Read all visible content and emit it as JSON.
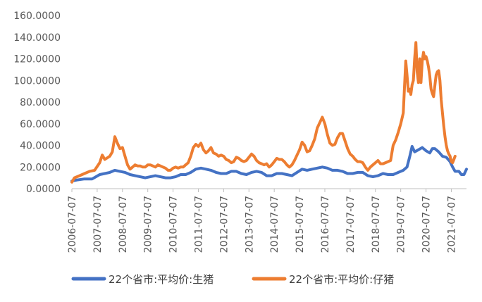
{
  "chart_data": {
    "type": "line",
    "title": "",
    "xlabel": "",
    "ylabel": "",
    "ylim": [
      0,
      160
    ],
    "y_ticks": [
      "0.0000",
      "20.0000",
      "40.0000",
      "60.0000",
      "80.0000",
      "100.0000",
      "120.0000",
      "140.0000",
      "160.0000"
    ],
    "x_ticks": [
      "2006-07-07",
      "2007-07-07",
      "2008-07-07",
      "2009-07-07",
      "2010-07-07",
      "2011-07-07",
      "2012-07-07",
      "2013-07-07",
      "2014-07-07",
      "2015-07-07",
      "2016-07-07",
      "2017-07-07",
      "2018-07-07",
      "2019-07-07",
      "2020-07-07",
      "2021-07-07"
    ],
    "x_tick_years": [
      2006.5,
      2007.5,
      2008.5,
      2009.5,
      2010.5,
      2011.5,
      2012.5,
      2013.5,
      2014.5,
      2015.5,
      2016.5,
      2017.5,
      2018.5,
      2019.5,
      2020.5,
      2021.5
    ],
    "grid": false,
    "legend_position": "bottom",
    "series": [
      {
        "name": "22个省市:平均价:生猪",
        "color": "#4472C4",
        "points": [
          [
            2006.5,
            7
          ],
          [
            2006.7,
            8
          ],
          [
            2007.0,
            9
          ],
          [
            2007.3,
            9
          ],
          [
            2007.6,
            13
          ],
          [
            2007.8,
            14
          ],
          [
            2008.0,
            15
          ],
          [
            2008.2,
            17
          ],
          [
            2008.4,
            16
          ],
          [
            2008.6,
            15
          ],
          [
            2008.8,
            13
          ],
          [
            2009.0,
            12
          ],
          [
            2009.2,
            11
          ],
          [
            2009.4,
            10
          ],
          [
            2009.6,
            11
          ],
          [
            2009.8,
            12
          ],
          [
            2010.0,
            11
          ],
          [
            2010.2,
            10
          ],
          [
            2010.4,
            10
          ],
          [
            2010.6,
            11
          ],
          [
            2010.8,
            13
          ],
          [
            2011.0,
            13
          ],
          [
            2011.2,
            15
          ],
          [
            2011.4,
            18
          ],
          [
            2011.6,
            19
          ],
          [
            2011.8,
            18
          ],
          [
            2012.0,
            17
          ],
          [
            2012.2,
            15
          ],
          [
            2012.4,
            14
          ],
          [
            2012.6,
            14
          ],
          [
            2012.8,
            16
          ],
          [
            2013.0,
            16
          ],
          [
            2013.2,
            14
          ],
          [
            2013.4,
            13
          ],
          [
            2013.6,
            15
          ],
          [
            2013.8,
            16
          ],
          [
            2014.0,
            15
          ],
          [
            2014.2,
            12
          ],
          [
            2014.4,
            12
          ],
          [
            2014.6,
            14
          ],
          [
            2014.8,
            14
          ],
          [
            2015.0,
            13
          ],
          [
            2015.2,
            12
          ],
          [
            2015.4,
            15
          ],
          [
            2015.6,
            18
          ],
          [
            2015.8,
            17
          ],
          [
            2016.0,
            18
          ],
          [
            2016.2,
            19
          ],
          [
            2016.4,
            20
          ],
          [
            2016.6,
            19
          ],
          [
            2016.8,
            17
          ],
          [
            2017.0,
            17
          ],
          [
            2017.2,
            16
          ],
          [
            2017.4,
            14
          ],
          [
            2017.6,
            14
          ],
          [
            2017.8,
            15
          ],
          [
            2018.0,
            15
          ],
          [
            2018.2,
            12
          ],
          [
            2018.4,
            11
          ],
          [
            2018.6,
            12
          ],
          [
            2018.8,
            14
          ],
          [
            2019.0,
            13
          ],
          [
            2019.2,
            13
          ],
          [
            2019.4,
            15
          ],
          [
            2019.6,
            17
          ],
          [
            2019.75,
            20
          ],
          [
            2019.85,
            29
          ],
          [
            2019.95,
            39
          ],
          [
            2020.05,
            34
          ],
          [
            2020.2,
            36
          ],
          [
            2020.35,
            38
          ],
          [
            2020.5,
            35
          ],
          [
            2020.65,
            33
          ],
          [
            2020.75,
            37
          ],
          [
            2020.85,
            37
          ],
          [
            2021.0,
            34
          ],
          [
            2021.15,
            30
          ],
          [
            2021.3,
            29
          ],
          [
            2021.45,
            25
          ],
          [
            2021.55,
            20
          ],
          [
            2021.65,
            16
          ],
          [
            2021.8,
            16
          ],
          [
            2021.9,
            13
          ],
          [
            2022.0,
            13
          ],
          [
            2022.1,
            18
          ]
        ]
      },
      {
        "name": "22个省市:平均价:仔猪",
        "color": "#ED7D31",
        "points": [
          [
            2006.5,
            6
          ],
          [
            2006.6,
            10
          ],
          [
            2006.8,
            12
          ],
          [
            2007.0,
            14
          ],
          [
            2007.2,
            16
          ],
          [
            2007.4,
            17
          ],
          [
            2007.6,
            24
          ],
          [
            2007.7,
            31
          ],
          [
            2007.8,
            27
          ],
          [
            2008.0,
            30
          ],
          [
            2008.1,
            34
          ],
          [
            2008.2,
            48
          ],
          [
            2008.3,
            42
          ],
          [
            2008.4,
            37
          ],
          [
            2008.5,
            38
          ],
          [
            2008.6,
            30
          ],
          [
            2008.7,
            22
          ],
          [
            2008.8,
            18
          ],
          [
            2008.9,
            20
          ],
          [
            2009.0,
            22
          ],
          [
            2009.1,
            21
          ],
          [
            2009.2,
            21
          ],
          [
            2009.3,
            20
          ],
          [
            2009.4,
            20
          ],
          [
            2009.5,
            22
          ],
          [
            2009.6,
            22
          ],
          [
            2009.7,
            21
          ],
          [
            2009.8,
            20
          ],
          [
            2009.9,
            22
          ],
          [
            2010.0,
            21
          ],
          [
            2010.1,
            20
          ],
          [
            2010.2,
            19
          ],
          [
            2010.3,
            17
          ],
          [
            2010.4,
            17
          ],
          [
            2010.5,
            19
          ],
          [
            2010.6,
            20
          ],
          [
            2010.7,
            19
          ],
          [
            2010.8,
            20
          ],
          [
            2010.9,
            20
          ],
          [
            2011.0,
            22
          ],
          [
            2011.1,
            24
          ],
          [
            2011.2,
            30
          ],
          [
            2011.3,
            38
          ],
          [
            2011.4,
            41
          ],
          [
            2011.5,
            39
          ],
          [
            2011.6,
            42
          ],
          [
            2011.7,
            36
          ],
          [
            2011.8,
            33
          ],
          [
            2011.9,
            35
          ],
          [
            2012.0,
            38
          ],
          [
            2012.1,
            33
          ],
          [
            2012.2,
            32
          ],
          [
            2012.3,
            30
          ],
          [
            2012.4,
            31
          ],
          [
            2012.5,
            30
          ],
          [
            2012.6,
            27
          ],
          [
            2012.7,
            26
          ],
          [
            2012.8,
            24
          ],
          [
            2012.9,
            25
          ],
          [
            2013.0,
            29
          ],
          [
            2013.1,
            28
          ],
          [
            2013.2,
            26
          ],
          [
            2013.3,
            25
          ],
          [
            2013.4,
            26
          ],
          [
            2013.5,
            29
          ],
          [
            2013.6,
            32
          ],
          [
            2013.7,
            30
          ],
          [
            2013.8,
            26
          ],
          [
            2013.9,
            24
          ],
          [
            2014.0,
            23
          ],
          [
            2014.1,
            22
          ],
          [
            2014.2,
            23
          ],
          [
            2014.3,
            20
          ],
          [
            2014.4,
            22
          ],
          [
            2014.5,
            25
          ],
          [
            2014.6,
            28
          ],
          [
            2014.7,
            27
          ],
          [
            2014.8,
            27
          ],
          [
            2014.9,
            25
          ],
          [
            2015.0,
            22
          ],
          [
            2015.1,
            20
          ],
          [
            2015.2,
            22
          ],
          [
            2015.3,
            26
          ],
          [
            2015.4,
            31
          ],
          [
            2015.5,
            36
          ],
          [
            2015.6,
            43
          ],
          [
            2015.7,
            40
          ],
          [
            2015.8,
            34
          ],
          [
            2015.9,
            35
          ],
          [
            2016.0,
            40
          ],
          [
            2016.1,
            46
          ],
          [
            2016.2,
            56
          ],
          [
            2016.3,
            61
          ],
          [
            2016.4,
            66
          ],
          [
            2016.5,
            60
          ],
          [
            2016.6,
            50
          ],
          [
            2016.7,
            42
          ],
          [
            2016.8,
            40
          ],
          [
            2016.9,
            41
          ],
          [
            2017.0,
            47
          ],
          [
            2017.1,
            51
          ],
          [
            2017.2,
            51
          ],
          [
            2017.3,
            44
          ],
          [
            2017.4,
            37
          ],
          [
            2017.5,
            32
          ],
          [
            2017.6,
            30
          ],
          [
            2017.7,
            27
          ],
          [
            2017.8,
            25
          ],
          [
            2017.9,
            25
          ],
          [
            2018.0,
            24
          ],
          [
            2018.1,
            20
          ],
          [
            2018.2,
            17
          ],
          [
            2018.3,
            20
          ],
          [
            2018.4,
            22
          ],
          [
            2018.5,
            24
          ],
          [
            2018.6,
            26
          ],
          [
            2018.7,
            23
          ],
          [
            2018.8,
            23
          ],
          [
            2018.9,
            24
          ],
          [
            2019.0,
            25
          ],
          [
            2019.1,
            26
          ],
          [
            2019.2,
            40
          ],
          [
            2019.3,
            45
          ],
          [
            2019.4,
            52
          ],
          [
            2019.5,
            60
          ],
          [
            2019.6,
            70
          ],
          [
            2019.65,
            95
          ],
          [
            2019.7,
            118
          ],
          [
            2019.75,
            105
          ],
          [
            2019.8,
            90
          ],
          [
            2019.85,
            92
          ],
          [
            2019.9,
            87
          ],
          [
            2019.95,
            96
          ],
          [
            2020.0,
            100
          ],
          [
            2020.05,
            120
          ],
          [
            2020.1,
            135
          ],
          [
            2020.15,
            108
          ],
          [
            2020.2,
            98
          ],
          [
            2020.25,
            120
          ],
          [
            2020.3,
            98
          ],
          [
            2020.35,
            118
          ],
          [
            2020.4,
            126
          ],
          [
            2020.45,
            120
          ],
          [
            2020.5,
            122
          ],
          [
            2020.55,
            118
          ],
          [
            2020.6,
            112
          ],
          [
            2020.65,
            104
          ],
          [
            2020.7,
            92
          ],
          [
            2020.75,
            88
          ],
          [
            2020.8,
            85
          ],
          [
            2020.85,
            95
          ],
          [
            2020.9,
            105
          ],
          [
            2020.95,
            108
          ],
          [
            2021.0,
            109
          ],
          [
            2021.05,
            100
          ],
          [
            2021.1,
            82
          ],
          [
            2021.15,
            70
          ],
          [
            2021.2,
            58
          ],
          [
            2021.25,
            48
          ],
          [
            2021.3,
            40
          ],
          [
            2021.35,
            35
          ],
          [
            2021.4,
            32
          ],
          [
            2021.45,
            30
          ],
          [
            2021.5,
            25
          ],
          [
            2021.55,
            24
          ],
          [
            2021.6,
            27
          ],
          [
            2021.65,
            30
          ]
        ]
      }
    ]
  }
}
